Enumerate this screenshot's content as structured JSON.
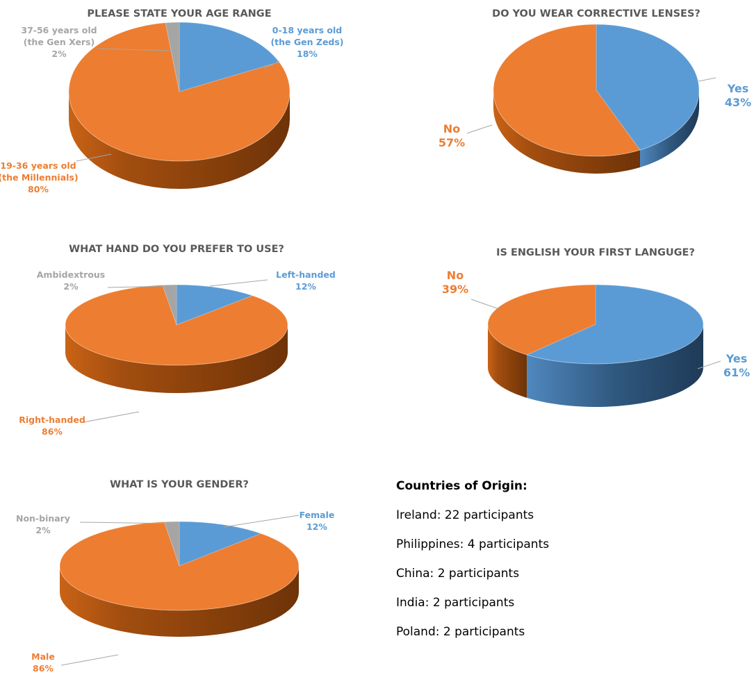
{
  "chart_data": [
    {
      "type": "pie",
      "title": "PLEASE STATE YOUR AGE RANGE",
      "slices": [
        {
          "label_lines": [
            "0-18 years old",
            "(the Gen Zeds)"
          ],
          "pct": "18%",
          "value": 18,
          "color": "#5B9BD5"
        },
        {
          "label_lines": [
            "19-36 years old",
            "(the Millennials)"
          ],
          "pct": "80%",
          "value": 80,
          "color": "#ED7D31"
        },
        {
          "label_lines": [
            "37-56 years old",
            "(the Gen Xers)"
          ],
          "pct": "2%",
          "value": 2,
          "color": "#A5A5A5"
        }
      ]
    },
    {
      "type": "pie",
      "title": "DO YOU WEAR CORRECTIVE LENSES?",
      "slices": [
        {
          "label_lines": [
            "Yes"
          ],
          "pct": "43%",
          "value": 43,
          "color": "#5B9BD5"
        },
        {
          "label_lines": [
            "No"
          ],
          "pct": "57%",
          "value": 57,
          "color": "#ED7D31"
        }
      ]
    },
    {
      "type": "pie",
      "title": "WHAT HAND DO YOU PREFER TO USE?",
      "slices": [
        {
          "label_lines": [
            "Left-handed"
          ],
          "pct": "12%",
          "value": 12,
          "color": "#5B9BD5"
        },
        {
          "label_lines": [
            "Right-handed"
          ],
          "pct": "86%",
          "value": 86,
          "color": "#ED7D31"
        },
        {
          "label_lines": [
            "Ambidextrous"
          ],
          "pct": "2%",
          "value": 2,
          "color": "#A5A5A5"
        }
      ]
    },
    {
      "type": "pie",
      "title": "IS ENGLISH YOUR FIRST LANGUGE?",
      "slices": [
        {
          "label_lines": [
            "Yes"
          ],
          "pct": "61%",
          "value": 61,
          "color": "#5B9BD5"
        },
        {
          "label_lines": [
            "No"
          ],
          "pct": "39%",
          "value": 39,
          "color": "#ED7D31"
        }
      ]
    },
    {
      "type": "pie",
      "title": "WHAT IS YOUR GENDER?",
      "slices": [
        {
          "label_lines": [
            "Female"
          ],
          "pct": "12%",
          "value": 12,
          "color": "#5B9BD5"
        },
        {
          "label_lines": [
            "Male"
          ],
          "pct": "86%",
          "value": 86,
          "color": "#ED7D31"
        },
        {
          "label_lines": [
            "Non-binary"
          ],
          "pct": "2%",
          "value": 2,
          "color": "#A5A5A5"
        }
      ]
    }
  ],
  "countries": {
    "heading": "Countries of Origin:",
    "items": [
      "Ireland: 22 participants",
      "Philippines: 4 participants",
      "China: 2 participants",
      "India: 2 participants",
      "Poland: 2 participants"
    ]
  }
}
